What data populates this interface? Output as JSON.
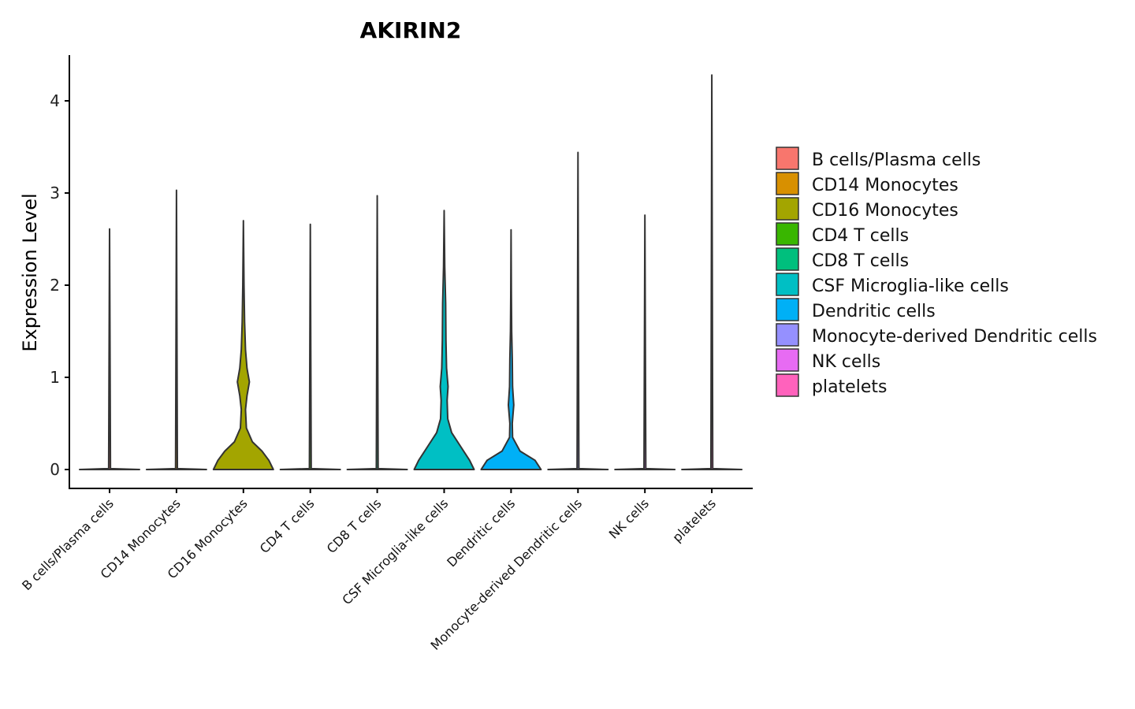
{
  "chart_data": {
    "type": "violin",
    "title": "AKIRIN2",
    "ylabel": "Expression Level",
    "xlabel": "",
    "ylim": [
      -0.22,
      4.5
    ],
    "yticks": [
      0,
      1,
      2,
      3,
      4
    ],
    "legend_position": "right",
    "categories": [
      "B cells/Plasma cells",
      "CD14 Monocytes",
      "CD16 Monocytes",
      "CD4 T cells",
      "CD8 T cells",
      "CSF Microglia-like cells",
      "Dendritic cells",
      "Monocyte-derived Dendritic cells",
      "NK cells",
      "platelets"
    ],
    "colors": [
      "#F8766D",
      "#D89000",
      "#A3A500",
      "#39B600",
      "#00BF7D",
      "#00BFC4",
      "#00B0F6",
      "#9590FF",
      "#E76BF3",
      "#FF62BC"
    ],
    "violins": [
      {
        "max": 2.61,
        "profile": [
          [
            0,
            1
          ],
          [
            0.01,
            0.03
          ],
          [
            2.61,
            0
          ]
        ]
      },
      {
        "max": 3.03,
        "profile": [
          [
            0,
            1
          ],
          [
            0.01,
            0.03
          ],
          [
            3.03,
            0
          ]
        ]
      },
      {
        "max": 2.7,
        "profile": [
          [
            0,
            1
          ],
          [
            0.1,
            0.85
          ],
          [
            0.2,
            0.62
          ],
          [
            0.3,
            0.3
          ],
          [
            0.45,
            0.1
          ],
          [
            0.65,
            0.07
          ],
          [
            0.8,
            0.12
          ],
          [
            0.95,
            0.2
          ],
          [
            1.1,
            0.12
          ],
          [
            1.3,
            0.07
          ],
          [
            1.6,
            0.04
          ],
          [
            2.0,
            0.02
          ],
          [
            2.7,
            0
          ]
        ]
      },
      {
        "max": 2.66,
        "profile": [
          [
            0,
            1
          ],
          [
            0.01,
            0.03
          ],
          [
            2.66,
            0
          ]
        ]
      },
      {
        "max": 2.97,
        "profile": [
          [
            0,
            1
          ],
          [
            0.01,
            0.03
          ],
          [
            2.97,
            0
          ]
        ]
      },
      {
        "max": 2.81,
        "profile": [
          [
            0,
            1
          ],
          [
            0.1,
            0.85
          ],
          [
            0.25,
            0.55
          ],
          [
            0.4,
            0.25
          ],
          [
            0.55,
            0.12
          ],
          [
            0.75,
            0.1
          ],
          [
            0.9,
            0.13
          ],
          [
            1.1,
            0.08
          ],
          [
            1.4,
            0.06
          ],
          [
            1.8,
            0.05
          ],
          [
            2.2,
            0.02
          ],
          [
            2.81,
            0
          ]
        ]
      },
      {
        "max": 2.6,
        "profile": [
          [
            0,
            1
          ],
          [
            0.1,
            0.8
          ],
          [
            0.2,
            0.3
          ],
          [
            0.35,
            0.05
          ],
          [
            0.5,
            0.04
          ],
          [
            0.7,
            0.09
          ],
          [
            0.9,
            0.05
          ],
          [
            1.2,
            0.04
          ],
          [
            1.5,
            0.02
          ],
          [
            1.9,
            0.01
          ],
          [
            2.6,
            0
          ]
        ]
      },
      {
        "max": 3.44,
        "profile": [
          [
            0,
            1
          ],
          [
            0.01,
            0.03
          ],
          [
            3.44,
            0
          ]
        ]
      },
      {
        "max": 2.76,
        "profile": [
          [
            0,
            1
          ],
          [
            0.01,
            0.03
          ],
          [
            2.76,
            0
          ]
        ]
      },
      {
        "max": 4.28,
        "profile": [
          [
            0,
            1
          ],
          [
            0.01,
            0.03
          ],
          [
            4.28,
            0
          ]
        ]
      }
    ]
  }
}
